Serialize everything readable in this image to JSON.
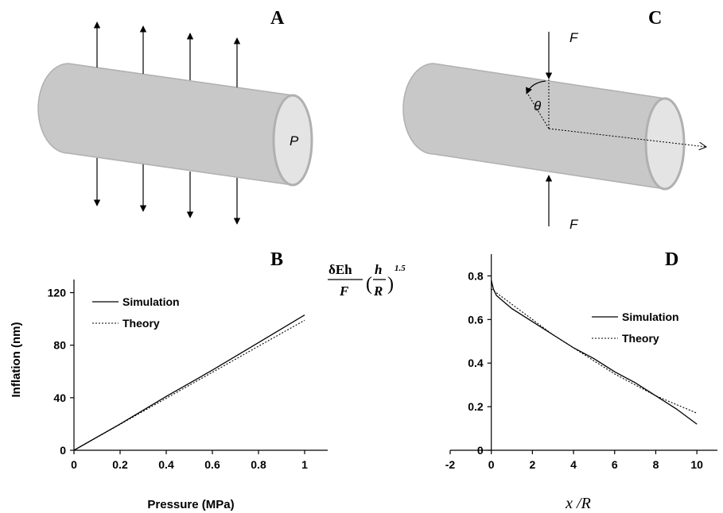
{
  "panels": {
    "A": {
      "label": "A",
      "pressure_symbol": "P"
    },
    "B": {
      "label": "B"
    },
    "C": {
      "label": "C",
      "force_top": "F",
      "force_bottom": "F",
      "angle_symbol": "θ"
    },
    "D": {
      "label": "D"
    }
  },
  "colors": {
    "cylinder_body": "#c8c8c8",
    "cylinder_end": "#e4e4e4",
    "cylinder_edge": "#b0b0b0",
    "ink": "#000000"
  },
  "chart_data": [
    {
      "panel": "B",
      "type": "line",
      "title": "",
      "xlabel": "Pressure (MPa)",
      "ylabel": "Inflation (nm)",
      "xlim": [
        0,
        1.1
      ],
      "ylim": [
        0,
        130
      ],
      "xticks": [
        0,
        0.2,
        0.4,
        0.6,
        0.8,
        1
      ],
      "xtick_labels": [
        "0",
        "0.2",
        "0.4",
        "0.6",
        "0.8",
        "1"
      ],
      "yticks": [
        0,
        40,
        80,
        120
      ],
      "ytick_labels": [
        "0",
        "40",
        "80",
        "120"
      ],
      "grid": false,
      "legend": "top-left",
      "series": [
        {
          "name": "Simulation",
          "style": "solid",
          "x": [
            0,
            0.2,
            0.4,
            0.6,
            0.8,
            1.0
          ],
          "y": [
            0,
            20,
            41,
            61,
            82,
            103
          ]
        },
        {
          "name": "Theory",
          "style": "dotted",
          "x": [
            0,
            0.2,
            0.4,
            0.6,
            0.8,
            1.0
          ],
          "y": [
            0,
            19.8,
            39.6,
            59.4,
            79.2,
            99
          ]
        }
      ]
    },
    {
      "panel": "D",
      "type": "line",
      "title": "",
      "xlabel": "x /R",
      "ylabel_parts": {
        "num": "δEh",
        "den": "F",
        "h": "h",
        "r": "R",
        "exp": "1.5"
      },
      "xlim": [
        -2,
        11
      ],
      "ylim": [
        0,
        0.9
      ],
      "xticks": [
        -2,
        0,
        2,
        4,
        6,
        8,
        10
      ],
      "xtick_labels": [
        "-2",
        "0",
        "2",
        "4",
        "6",
        "8",
        "10"
      ],
      "yticks": [
        0,
        0.2,
        0.4,
        0.6,
        0.8
      ],
      "ytick_labels": [
        "0",
        "0.2",
        "0.4",
        "0.6",
        "0.8"
      ],
      "grid": false,
      "legend": "top-right",
      "series": [
        {
          "name": "Simulation",
          "style": "solid",
          "x": [
            0,
            0.1,
            0.25,
            0.5,
            1,
            2,
            3,
            4,
            5,
            6,
            7,
            8,
            9,
            10
          ],
          "y": [
            0.78,
            0.74,
            0.71,
            0.69,
            0.65,
            0.59,
            0.53,
            0.47,
            0.42,
            0.36,
            0.31,
            0.25,
            0.19,
            0.12
          ]
        },
        {
          "name": "Theory",
          "style": "dotted",
          "x": [
            0,
            1,
            2,
            3,
            4,
            5,
            6,
            7,
            8,
            9,
            10
          ],
          "y": [
            0.74,
            0.67,
            0.6,
            0.53,
            0.47,
            0.41,
            0.35,
            0.3,
            0.25,
            0.21,
            0.17
          ]
        }
      ]
    }
  ]
}
